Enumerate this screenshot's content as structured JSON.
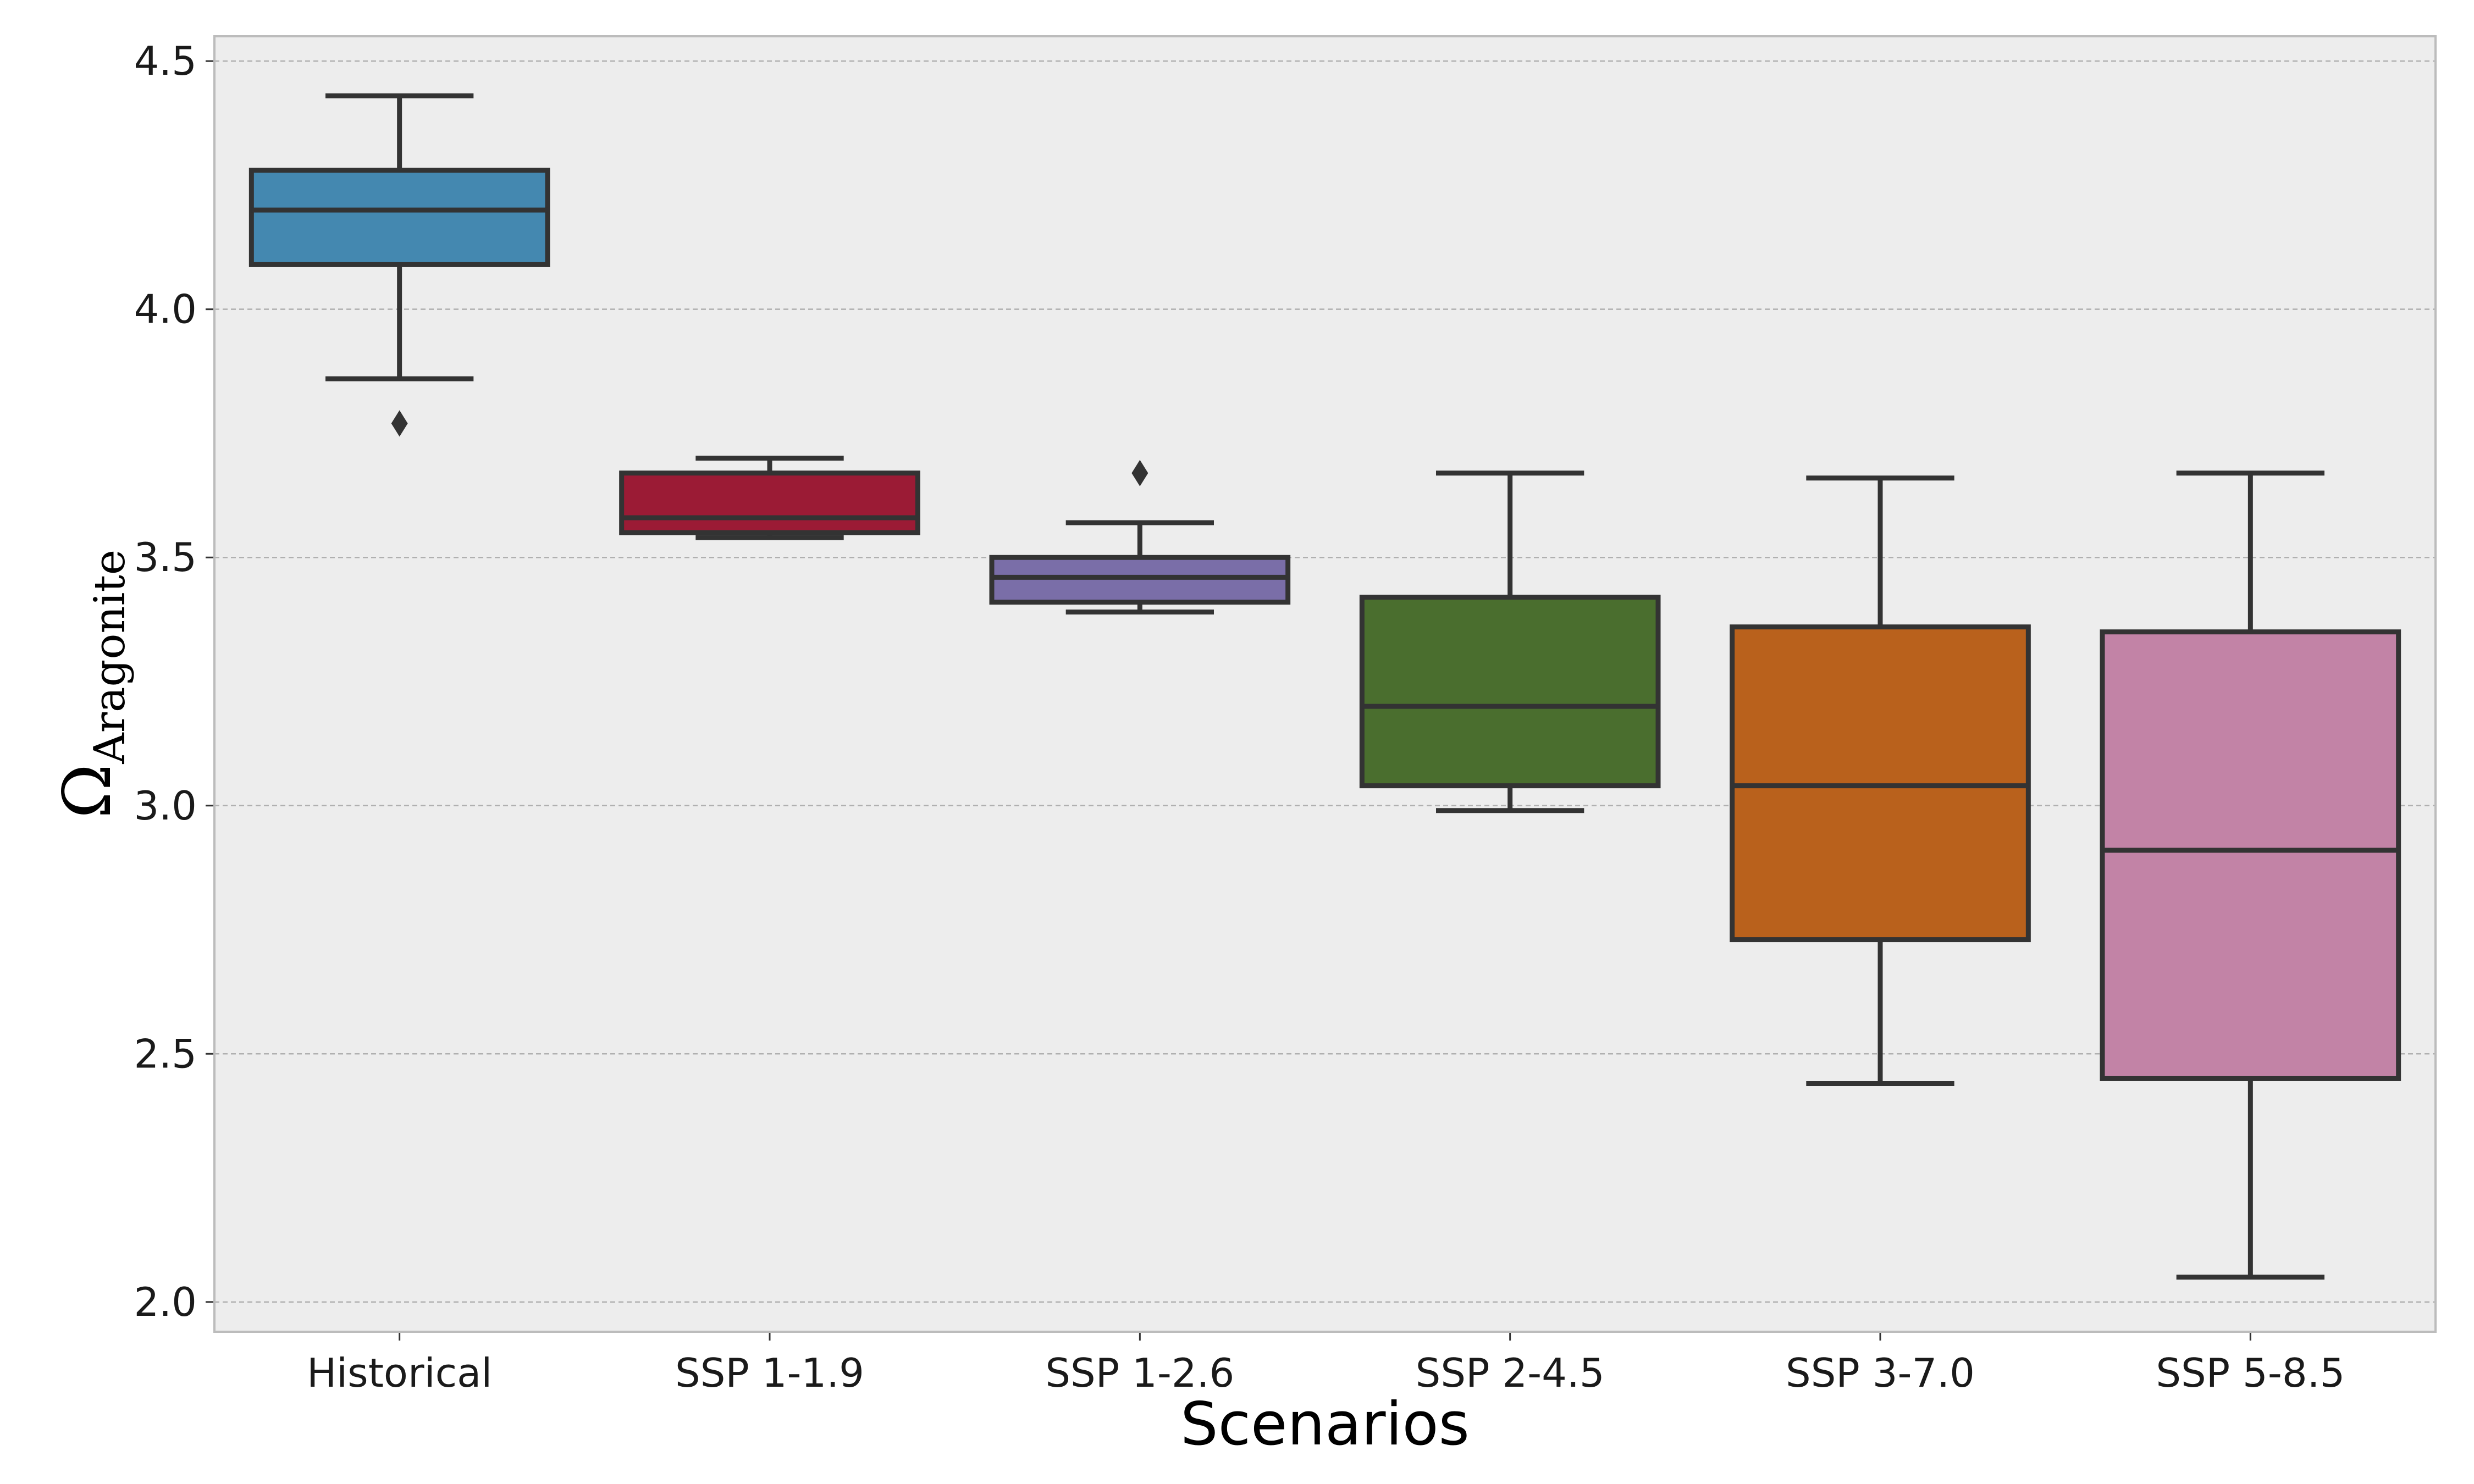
{
  "chart_data": {
    "type": "box",
    "title": "",
    "xlabel": "Scenarios",
    "ylabel": {
      "symbol": "Ω",
      "subscript": "Aragonite"
    },
    "ylim": [
      1.94,
      4.55
    ],
    "yticks": [
      "2.0",
      "2.5",
      "3.0",
      "3.5",
      "4.0",
      "4.5"
    ],
    "grid": "horizontal-dashed",
    "legend": "none",
    "categories": [
      "Historical",
      "SSP 1-1.9",
      "SSP 1-2.6",
      "SSP 2-4.5",
      "SSP 3-7.0",
      "SSP 5-8.5"
    ],
    "series": [
      {
        "category": "Historical",
        "color": "#4488b0",
        "whisker_low": 3.86,
        "q1": 4.09,
        "median": 4.2,
        "q3": 4.28,
        "whisker_high": 4.43,
        "outliers": [
          3.77
        ]
      },
      {
        "category": "SSP 1-1.9",
        "color": "#9b1b35",
        "whisker_low": 3.54,
        "q1": 3.55,
        "median": 3.58,
        "q3": 3.67,
        "whisker_high": 3.7,
        "outliers": []
      },
      {
        "category": "SSP 1-2.6",
        "color": "#7a6ea8",
        "whisker_low": 3.39,
        "q1": 3.41,
        "median": 3.46,
        "q3": 3.5,
        "whisker_high": 3.57,
        "outliers": [
          3.67
        ]
      },
      {
        "category": "SSP 2-4.5",
        "color": "#4a6e2e",
        "whisker_low": 2.99,
        "q1": 3.04,
        "median": 3.2,
        "q3": 3.42,
        "whisker_high": 3.67,
        "outliers": []
      },
      {
        "category": "SSP 3-7.0",
        "color": "#b9611c",
        "whisker_low": 2.44,
        "q1": 2.73,
        "median": 3.04,
        "q3": 3.36,
        "whisker_high": 3.66,
        "outliers": []
      },
      {
        "category": "SSP 5-8.5",
        "color": "#c283a6",
        "whisker_low": 2.05,
        "q1": 2.45,
        "median": 2.91,
        "q3": 3.35,
        "whisker_high": 3.67,
        "outliers": []
      }
    ],
    "colors": {
      "plot_background": "#ededed",
      "frame": "#bcbcbc",
      "grid": "#b0b0b0",
      "box_edge": "#333333"
    }
  }
}
